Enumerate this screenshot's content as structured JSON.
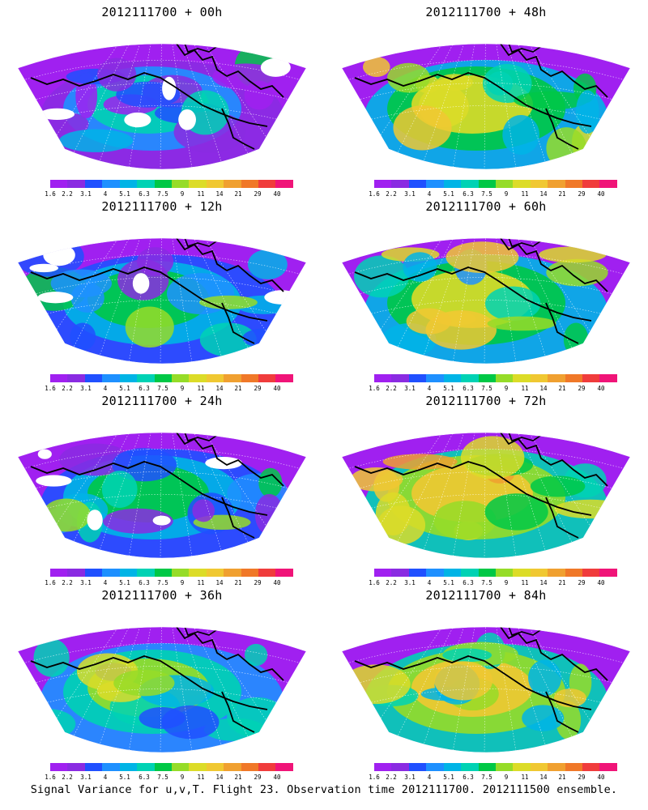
{
  "palette": [
    "#a020f0",
    "#8a2be2",
    "#2050ff",
    "#1e90ff",
    "#00b4e6",
    "#00d2b4",
    "#00c846",
    "#96dc28",
    "#dcdc28",
    "#f0c832",
    "#f0a030",
    "#f07828",
    "#f03c3c",
    "#f01478"
  ],
  "colorbar_ticks": [
    "1.6",
    "2.2",
    "3.1",
    "4",
    "5.1",
    "6.3",
    "7.5",
    "9",
    "11",
    "14",
    "21",
    "29",
    "40"
  ],
  "panels": [
    {
      "title": "2012111700 + 00h",
      "intensity": 0.1
    },
    {
      "title": "2012111700 + 12h",
      "intensity": 0.25
    },
    {
      "title": "2012111700 + 24h",
      "intensity": 0.4
    },
    {
      "title": "2012111700 + 36h",
      "intensity": 0.5
    },
    {
      "title": "2012111700 + 48h",
      "intensity": 0.62
    },
    {
      "title": "2012111700 + 60h",
      "intensity": 0.72
    },
    {
      "title": "2012111700 + 72h",
      "intensity": 0.82
    },
    {
      "title": "2012111700 + 84h",
      "intensity": 0.9
    }
  ],
  "caption": "Signal Variance for u,v,T. Flight 23. Observation time 2012111700. 2012111500 ensemble."
}
